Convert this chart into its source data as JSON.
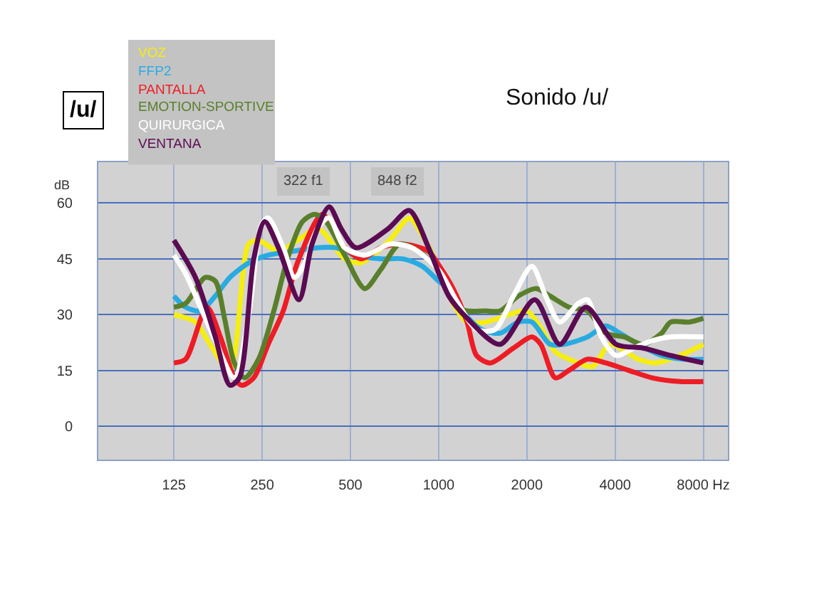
{
  "chart_data": {
    "type": "line",
    "title": "Sonido /u/",
    "ylabel": "dB",
    "annotations": [
      "/u/",
      {
        "text": "322 f1",
        "x": 347,
        "y": 66
      },
      {
        "text": "848 f2",
        "x": 725,
        "y": 66
      }
    ],
    "log": "x",
    "xlim": [
      69,
      9700
    ],
    "xticks": [
      125,
      250,
      500,
      1000,
      2000,
      4000,
      {
        "value": 8000,
        "label": "8000 Hz"
      }
    ],
    "ylim": [
      -9,
      71
    ],
    "yticks": [
      0,
      15,
      30,
      45,
      60
    ],
    "grid": true,
    "legend": "top left",
    "series": [
      {
        "name": "VOZ",
        "color": "#f5ee10",
        "x": [
          125,
          148,
          166,
          194,
          225,
          243,
          284,
          330,
          390,
          478,
          545,
          680,
          794,
          871,
          1007,
          1120,
          1250,
          1448,
          1740,
          2000,
          2250,
          2500,
          3000,
          3350,
          3850,
          4800,
          5500,
          6660,
          8000
        ],
        "values": [
          30,
          28,
          22,
          15,
          49,
          50,
          47,
          50,
          53,
          45,
          44,
          50,
          56,
          52,
          42,
          33,
          28,
          28,
          30,
          31,
          26,
          20,
          17,
          16,
          22,
          18,
          17,
          19,
          22
        ]
      },
      {
        "name": "FFP2",
        "color": "#29abe2",
        "x": [
          125,
          137,
          154,
          173,
          194,
          226,
          262,
          317,
          385,
          445,
          520,
          633,
          757,
          880,
          1000,
          1083,
          1200,
          1400,
          1620,
          1870,
          2080,
          2400,
          2680,
          3218,
          3722,
          4150,
          4800,
          5760,
          6900,
          8000
        ],
        "values": [
          35,
          32,
          31,
          35,
          40,
          44,
          46,
          47,
          48,
          48,
          46,
          45,
          45,
          43,
          39,
          37,
          31,
          26,
          25,
          28,
          28,
          22,
          22,
          24,
          27,
          25,
          22,
          19,
          18,
          18
        ]
      },
      {
        "name": "PANTALLA",
        "color": "#ee1c25",
        "x": [
          125,
          137,
          162,
          180,
          201,
          213,
          234,
          262,
          295,
          330,
          401,
          466,
          545,
          633,
          757,
          924,
          1007,
          1120,
          1250,
          1347,
          1500,
          1800,
          2080,
          2230,
          2500,
          2783,
          3218,
          3722,
          4450,
          5350,
          6660,
          8000
        ],
        "values": [
          17,
          18,
          32,
          24,
          13,
          11,
          13,
          22,
          31,
          44,
          57,
          49,
          45,
          48,
          49,
          47,
          43,
          37,
          28,
          19,
          17,
          21,
          24,
          22,
          13,
          15,
          18,
          17,
          15,
          13,
          12,
          12
        ]
      },
      {
        "name": "EMOTION-SPORTIVE",
        "color": "#5a7f2c",
        "x": [
          125,
          137,
          160,
          173,
          186,
          201,
          218,
          243,
          274,
          305,
          343,
          378,
          413,
          478,
          560,
          633,
          737,
          857,
          1000,
          1165,
          1252,
          1448,
          1620,
          1870,
          2156,
          2400,
          2783,
          3218,
          3722,
          4300,
          4980,
          5760,
          6190,
          7160,
          8000
        ],
        "values": [
          32,
          33,
          40,
          39,
          29,
          17,
          13,
          18,
          31,
          45,
          55,
          57,
          55,
          46,
          37,
          42,
          49,
          47,
          42,
          32,
          31,
          31,
          31,
          35,
          37,
          35,
          32,
          31,
          25,
          24,
          22,
          25,
          28,
          28,
          29
        ]
      },
      {
        "name": "QUIRURGICA",
        "color": "#ffffff",
        "x": [
          125,
          137,
          154,
          173,
          201,
          226,
          248,
          262,
          295,
          322,
          350,
          385,
          422,
          478,
          560,
          683,
          810,
          1000,
          1165,
          1347,
          1557,
          1800,
          2080,
          2319,
          2588,
          2993,
          3218,
          3590,
          4030,
          4630,
          5350,
          6190,
          8000
        ],
        "values": [
          46,
          41,
          32,
          23,
          13,
          31,
          54,
          56,
          48,
          40,
          44,
          53,
          56,
          48,
          46,
          49,
          48,
          42,
          33,
          26,
          26,
          35,
          43,
          35,
          28,
          33,
          34,
          24,
          19,
          21,
          23,
          24,
          24
        ]
      },
      {
        "name": "VENTANA",
        "color": "#5b0b52",
        "x": [
          125,
          148,
          173,
          194,
          209,
          234,
          255,
          284,
          334,
          370,
          423,
          466,
          522,
          670,
          794,
          924,
          1083,
          1252,
          1619,
          2128,
          2588,
          3178,
          4030,
          4980,
          6190,
          8000
        ],
        "values": [
          50,
          40,
          24,
          11,
          13,
          45,
          55,
          48,
          34,
          49,
          59,
          53,
          48,
          53,
          58,
          48,
          35,
          29,
          22,
          34,
          22,
          32,
          22,
          21,
          19,
          17
        ]
      }
    ]
  }
}
